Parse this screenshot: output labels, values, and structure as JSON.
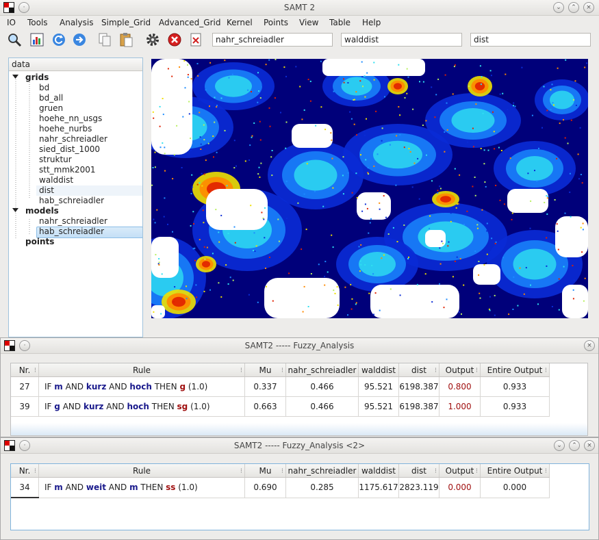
{
  "main_window": {
    "title": "SAMT 2",
    "menu": [
      "IO",
      "Tools",
      "Analysis",
      "Simple_Grid",
      "Advanced_Grid",
      "Kernel",
      "Points",
      "View",
      "Table",
      "Help"
    ],
    "toolbar": {
      "icons": [
        "zoom-icon",
        "histogram-icon",
        "refresh-icon",
        "forward-icon",
        "copy-icon",
        "paste-icon",
        "gear-icon",
        "stop-icon",
        "delete-icon"
      ],
      "field1": "nahr_schreiadler",
      "field2": "walddist",
      "field3": "dist"
    },
    "tree": {
      "root": "data",
      "grids_label": "grids",
      "grids": [
        "bd",
        "bd_all",
        "gruen",
        "hoehe_nn_usgs",
        "hoehe_nurbs",
        "nahr_schreiadler",
        "sied_dist_1000",
        "struktur",
        "stt_mmk2001",
        "walddist",
        "dist",
        "hab_schreiadler"
      ],
      "models_label": "models",
      "models": [
        "nahr_schreiadler",
        "hab_schreiadler"
      ],
      "points_label": "points",
      "hover_item": "dist",
      "selected_item": "hab_schreiadler"
    },
    "map_colors": [
      "#00007a",
      "#0a2bd6",
      "#1c8cff",
      "#2fe0f0",
      "#b8f060",
      "#f0e000",
      "#ff8a00",
      "#e02000",
      "#ffffff"
    ]
  },
  "fuzzy1": {
    "title": "SAMT2 ----- Fuzzy_Analysis",
    "columns": [
      "Nr.",
      "Rule",
      "Mu",
      "nahr_schreiadler",
      "walddist",
      "dist",
      "Output",
      "Entire Output"
    ],
    "rows": [
      {
        "nr": "27",
        "rule": {
          "if": "IF",
          "a": "m",
          "and1": "AND",
          "b": "kurz",
          "and2": "AND",
          "c": "hoch",
          "then": "THEN",
          "d": "g",
          "w": "(1.0)"
        },
        "mu": "0.337",
        "nahr": "0.466",
        "walddist": "95.521",
        "dist": "6198.387",
        "output": "0.800",
        "entire": "0.933"
      },
      {
        "nr": "39",
        "rule": {
          "if": "IF",
          "a": "g",
          "and1": "AND",
          "b": "kurz",
          "and2": "AND",
          "c": "hoch",
          "then": "THEN",
          "d": "sg",
          "w": "(1.0)"
        },
        "mu": "0.663",
        "nahr": "0.466",
        "walddist": "95.521",
        "dist": "6198.387",
        "output": "1.000",
        "entire": "0.933"
      }
    ]
  },
  "fuzzy2": {
    "title": "SAMT2 ----- Fuzzy_Analysis <2>",
    "columns": [
      "Nr.",
      "Rule",
      "Mu",
      "nahr_schreiadler",
      "walddist",
      "dist",
      "Output",
      "Entire Output"
    ],
    "rows": [
      {
        "nr": "34",
        "rule": {
          "if": "IF",
          "a": "m",
          "and1": "AND",
          "b": "weit",
          "and2": "AND",
          "c": "m",
          "then": "THEN",
          "d": "ss",
          "w": "(1.0)"
        },
        "mu": "0.690",
        "nahr": "0.285",
        "walddist": "1175.617",
        "dist": "2823.119",
        "output": "0.000",
        "entire": "0.000"
      }
    ]
  }
}
